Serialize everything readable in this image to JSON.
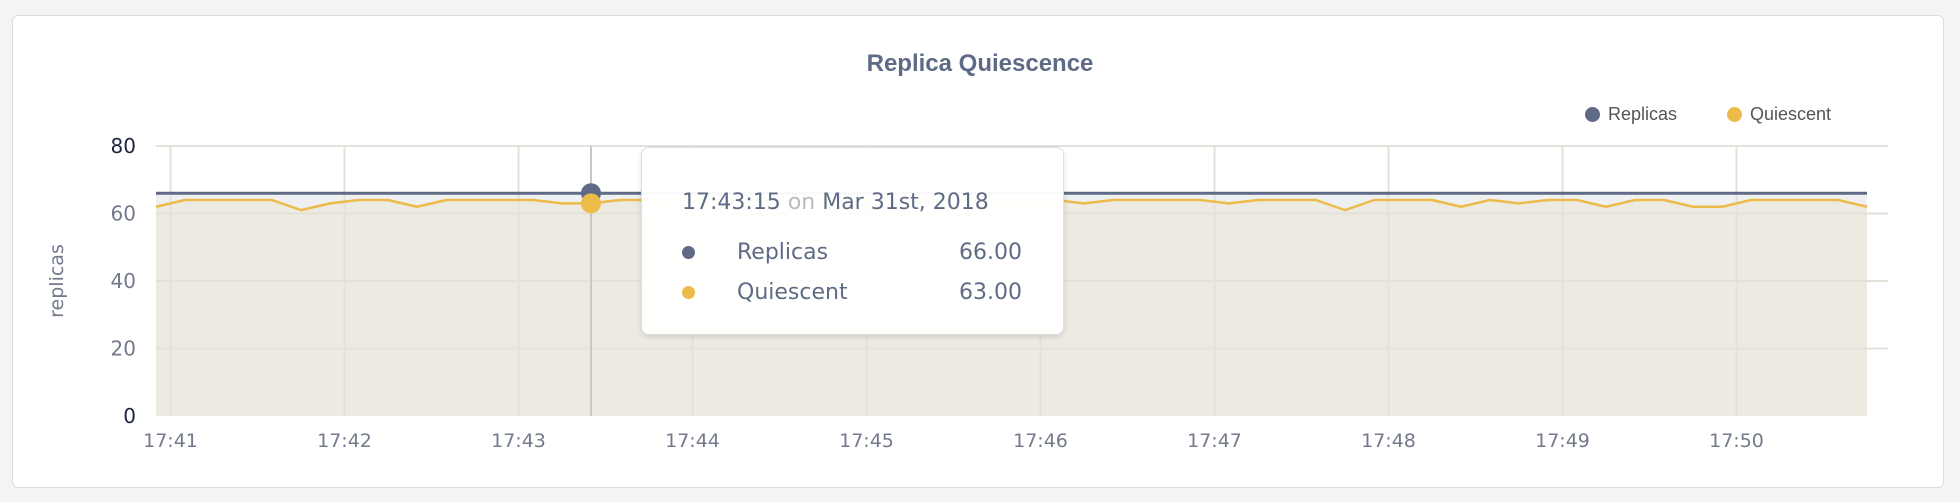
{
  "chart_data": {
    "type": "area",
    "title": "Replica Quiescence",
    "ylabel": "replicas",
    "xlabel": "",
    "ylim": [
      0,
      80
    ],
    "yticks": [
      "0",
      "20",
      "40",
      "60",
      "80"
    ],
    "xticks": [
      "17:41",
      "17:42",
      "17:43",
      "17:44",
      "17:45",
      "17:46",
      "17:47",
      "17:48",
      "17:49",
      "17:50"
    ],
    "x_start": "17:40:55",
    "x_step_seconds": 10,
    "grid": true,
    "legend_position": "top-right",
    "series": [
      {
        "name": "Replicas",
        "color": "#5f6b86",
        "values": [
          66,
          66,
          66,
          66,
          66,
          66,
          66,
          66,
          66,
          66,
          66,
          66,
          66,
          66,
          66,
          66,
          66,
          66,
          66,
          66,
          66,
          66,
          66,
          66,
          66,
          66,
          66,
          66,
          66,
          66,
          66,
          66,
          66,
          66,
          66,
          66,
          66,
          66,
          66,
          66,
          66,
          66,
          66,
          66,
          66,
          66,
          66,
          66,
          66,
          66,
          66,
          66,
          66,
          66,
          66,
          66,
          66,
          66,
          66,
          66
        ]
      },
      {
        "name": "Quiescent",
        "color": "#ecbb4a",
        "values": [
          62,
          64,
          64,
          64,
          64,
          61,
          63,
          64,
          64,
          62,
          64,
          64,
          64,
          64,
          63,
          63,
          64,
          64,
          64,
          64,
          64,
          64,
          64,
          64,
          64,
          64,
          64,
          64,
          64,
          64,
          64,
          64,
          63,
          64,
          64,
          64,
          64,
          63,
          64,
          64,
          64,
          61,
          64,
          64,
          64,
          62,
          64,
          63,
          64,
          64,
          62,
          64,
          64,
          62,
          62,
          64,
          64,
          64,
          64,
          62
        ]
      }
    ]
  },
  "tooltip": {
    "time": "17:43:15",
    "on": "on",
    "date": "Mar 31st, 2018",
    "rows": [
      {
        "label": "Replicas",
        "value": "66.00"
      },
      {
        "label": "Quiescent",
        "value": "63.00"
      }
    ]
  }
}
